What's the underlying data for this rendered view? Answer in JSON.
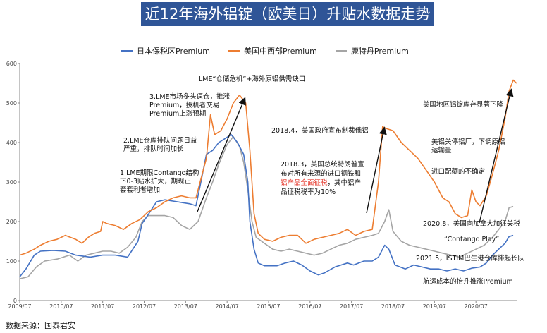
{
  "title": "近12年海外铝锭（欧美日）升贴水数据走势",
  "source": "数据来源：国泰君安",
  "colors": {
    "japan": "#4472c4",
    "us": "#ed7d31",
    "rotterdam": "#a5a5a5",
    "title_bg": "#2f5597",
    "highlight": "#e63a2e"
  },
  "chart_data": {
    "type": "line",
    "title": "",
    "xlabel": "",
    "ylabel": "",
    "ylim": [
      0,
      600
    ],
    "yticks": [
      0,
      100,
      200,
      300,
      400,
      500,
      600
    ],
    "xticks": [
      "2009/07",
      "2010/07",
      "2011/07",
      "2012/07",
      "2013/07",
      "2014/07",
      "2015/07",
      "2016/07",
      "2017/07",
      "2018/07",
      "2019/07",
      "2020/07"
    ],
    "x_start": 2009.5,
    "x_end": 2021.5,
    "grid": false,
    "legend_position": "top",
    "series": [
      {
        "name": "日本保税区Premium",
        "color_key": "japan",
        "points": [
          [
            2009.5,
            60
          ],
          [
            2009.65,
            80
          ],
          [
            2009.85,
            115
          ],
          [
            2010.0,
            125
          ],
          [
            2010.3,
            127
          ],
          [
            2010.6,
            125
          ],
          [
            2010.85,
            115
          ],
          [
            2011.2,
            110
          ],
          [
            2011.5,
            115
          ],
          [
            2011.8,
            115
          ],
          [
            2012.1,
            110
          ],
          [
            2012.35,
            150
          ],
          [
            2012.45,
            195
          ],
          [
            2012.55,
            210
          ],
          [
            2012.8,
            250
          ],
          [
            2013.0,
            255
          ],
          [
            2013.3,
            250
          ],
          [
            2013.6,
            245
          ],
          [
            2013.75,
            240
          ],
          [
            2013.85,
            290
          ],
          [
            2014.0,
            370
          ],
          [
            2014.15,
            380
          ],
          [
            2014.3,
            400
          ],
          [
            2014.45,
            410
          ],
          [
            2014.6,
            420
          ],
          [
            2014.75,
            400
          ],
          [
            2014.9,
            370
          ],
          [
            2015.0,
            300
          ],
          [
            2015.05,
            200
          ],
          [
            2015.15,
            130
          ],
          [
            2015.25,
            95
          ],
          [
            2015.4,
            88
          ],
          [
            2015.7,
            88
          ],
          [
            2015.9,
            95
          ],
          [
            2016.1,
            100
          ],
          [
            2016.3,
            90
          ],
          [
            2016.5,
            75
          ],
          [
            2016.7,
            65
          ],
          [
            2016.85,
            70
          ],
          [
            2017.1,
            85
          ],
          [
            2017.4,
            95
          ],
          [
            2017.55,
            90
          ],
          [
            2017.8,
            100
          ],
          [
            2018.0,
            100
          ],
          [
            2018.15,
            110
          ],
          [
            2018.3,
            140
          ],
          [
            2018.4,
            130
          ],
          [
            2018.55,
            90
          ],
          [
            2018.8,
            80
          ],
          [
            2019.0,
            90
          ],
          [
            2019.2,
            85
          ],
          [
            2019.4,
            80
          ],
          [
            2019.6,
            80
          ],
          [
            2019.8,
            75
          ],
          [
            2020.0,
            80
          ],
          [
            2020.2,
            75
          ],
          [
            2020.4,
            82
          ],
          [
            2020.6,
            85
          ],
          [
            2020.75,
            95
          ],
          [
            2020.9,
            115
          ],
          [
            2021.05,
            130
          ],
          [
            2021.2,
            145
          ],
          [
            2021.3,
            162
          ],
          [
            2021.4,
            165
          ]
        ]
      },
      {
        "name": "美国中西部Premium",
        "color_key": "us",
        "points": [
          [
            2009.5,
            115
          ],
          [
            2009.65,
            120
          ],
          [
            2009.85,
            130
          ],
          [
            2010.0,
            140
          ],
          [
            2010.2,
            150
          ],
          [
            2010.4,
            155
          ],
          [
            2010.6,
            165
          ],
          [
            2010.85,
            155
          ],
          [
            2011.0,
            145
          ],
          [
            2011.15,
            160
          ],
          [
            2011.3,
            170
          ],
          [
            2011.45,
            175
          ],
          [
            2011.5,
            200
          ],
          [
            2011.6,
            195
          ],
          [
            2011.8,
            190
          ],
          [
            2012.0,
            180
          ],
          [
            2012.2,
            195
          ],
          [
            2012.4,
            205
          ],
          [
            2012.6,
            225
          ],
          [
            2012.8,
            235
          ],
          [
            2013.0,
            250
          ],
          [
            2013.2,
            260
          ],
          [
            2013.4,
            265
          ],
          [
            2013.6,
            260
          ],
          [
            2013.75,
            260
          ],
          [
            2013.85,
            300
          ],
          [
            2014.0,
            360
          ],
          [
            2014.1,
            470
          ],
          [
            2014.2,
            420
          ],
          [
            2014.35,
            430
          ],
          [
            2014.5,
            460
          ],
          [
            2014.65,
            500
          ],
          [
            2014.8,
            520
          ],
          [
            2014.95,
            500
          ],
          [
            2015.05,
            380
          ],
          [
            2015.15,
            220
          ],
          [
            2015.25,
            170
          ],
          [
            2015.4,
            155
          ],
          [
            2015.6,
            150
          ],
          [
            2015.8,
            160
          ],
          [
            2016.0,
            165
          ],
          [
            2016.2,
            165
          ],
          [
            2016.4,
            145
          ],
          [
            2016.6,
            155
          ],
          [
            2016.8,
            160
          ],
          [
            2017.0,
            165
          ],
          [
            2017.2,
            170
          ],
          [
            2017.4,
            180
          ],
          [
            2017.6,
            165
          ],
          [
            2017.8,
            175
          ],
          [
            2018.0,
            180
          ],
          [
            2018.15,
            300
          ],
          [
            2018.25,
            440
          ],
          [
            2018.35,
            435
          ],
          [
            2018.5,
            430
          ],
          [
            2018.7,
            400
          ],
          [
            2018.9,
            380
          ],
          [
            2019.1,
            360
          ],
          [
            2019.3,
            330
          ],
          [
            2019.5,
            300
          ],
          [
            2019.7,
            260
          ],
          [
            2019.85,
            250
          ],
          [
            2020.0,
            220
          ],
          [
            2020.15,
            210
          ],
          [
            2020.3,
            215
          ],
          [
            2020.4,
            280
          ],
          [
            2020.5,
            250
          ],
          [
            2020.6,
            240
          ],
          [
            2020.75,
            265
          ],
          [
            2020.9,
            320
          ],
          [
            2021.05,
            380
          ],
          [
            2021.2,
            460
          ],
          [
            2021.3,
            530
          ],
          [
            2021.4,
            558
          ],
          [
            2021.48,
            550
          ]
        ]
      },
      {
        "name": "鹿特丹Premium",
        "color_key": "rotterdam",
        "points": [
          [
            2009.5,
            55
          ],
          [
            2009.7,
            60
          ],
          [
            2009.9,
            85
          ],
          [
            2010.1,
            100
          ],
          [
            2010.4,
            105
          ],
          [
            2010.7,
            115
          ],
          [
            2010.9,
            100
          ],
          [
            2011.1,
            115
          ],
          [
            2011.3,
            120
          ],
          [
            2011.5,
            125
          ],
          [
            2011.7,
            125
          ],
          [
            2011.9,
            120
          ],
          [
            2012.1,
            135
          ],
          [
            2012.3,
            160
          ],
          [
            2012.45,
            200
          ],
          [
            2012.6,
            215
          ],
          [
            2012.8,
            215
          ],
          [
            2013.0,
            215
          ],
          [
            2013.2,
            210
          ],
          [
            2013.4,
            190
          ],
          [
            2013.6,
            180
          ],
          [
            2013.8,
            200
          ],
          [
            2014.0,
            260
          ],
          [
            2014.15,
            300
          ],
          [
            2014.3,
            345
          ],
          [
            2014.5,
            395
          ],
          [
            2014.65,
            415
          ],
          [
            2014.8,
            390
          ],
          [
            2014.9,
            350
          ],
          [
            2015.0,
            280
          ],
          [
            2015.1,
            200
          ],
          [
            2015.2,
            160
          ],
          [
            2015.4,
            145
          ],
          [
            2015.6,
            130
          ],
          [
            2015.8,
            125
          ],
          [
            2016.0,
            130
          ],
          [
            2016.2,
            125
          ],
          [
            2016.4,
            120
          ],
          [
            2016.6,
            115
          ],
          [
            2016.8,
            120
          ],
          [
            2017.0,
            130
          ],
          [
            2017.2,
            140
          ],
          [
            2017.4,
            145
          ],
          [
            2017.6,
            155
          ],
          [
            2017.8,
            160
          ],
          [
            2018.0,
            165
          ],
          [
            2018.15,
            170
          ],
          [
            2018.3,
            200
          ],
          [
            2018.4,
            230
          ],
          [
            2018.5,
            175
          ],
          [
            2018.7,
            150
          ],
          [
            2018.9,
            140
          ],
          [
            2019.1,
            135
          ],
          [
            2019.3,
            130
          ],
          [
            2019.5,
            125
          ],
          [
            2019.7,
            120
          ],
          [
            2019.9,
            115
          ],
          [
            2020.1,
            110
          ],
          [
            2020.3,
            120
          ],
          [
            2020.5,
            130
          ],
          [
            2020.7,
            140
          ],
          [
            2020.9,
            160
          ],
          [
            2021.05,
            180
          ],
          [
            2021.2,
            200
          ],
          [
            2021.3,
            235
          ],
          [
            2021.4,
            238
          ]
        ]
      }
    ],
    "annotations": [
      {
        "id": "ann-1",
        "lines": [
          "1.LME期限Contango结构",
          "下0-3贴水扩大，期现正",
          "套套利者增加"
        ]
      },
      {
        "id": "ann-2",
        "lines": [
          "2.LME仓库排队问题日益",
          "严重，排队时间加长"
        ]
      },
      {
        "id": "ann-3",
        "lines": [
          "3.LME市场多头逼仓，推涨",
          "Premium，投机者交易",
          "Premium上涨预期"
        ]
      },
      {
        "id": "ann-4",
        "lines": [
          "LME“仓储危机”+海外原铝供需缺口"
        ]
      },
      {
        "id": "ann-5",
        "lines": [
          "2018.4，美国政府宣布制裁俄铝"
        ]
      },
      {
        "id": "ann-6",
        "lines": [
          "2018.3，美国总统特朗普宣",
          "布对所有来源的进口钢铁和",
          "铝产品全面征税，其中铝产",
          "品征税税率为10%"
        ],
        "red_fragment": "铝产品全面征税"
      },
      {
        "id": "ann-7",
        "lines": [
          "美国地区铝锭库存显著下降"
        ]
      },
      {
        "id": "ann-8",
        "lines": [
          "美铝关停铝厂，下调原铝",
          "运输量"
        ]
      },
      {
        "id": "ann-9",
        "lines": [
          "进口配额的不确定"
        ]
      },
      {
        "id": "ann-10",
        "lines": [
          "2020.8，美国向加拿大加征关税"
        ]
      },
      {
        "id": "ann-11",
        "lines": [
          "“Contango Play”"
        ]
      },
      {
        "id": "ann-12",
        "lines": [
          "2021.5，ISTIM巴生港仓库排起长队"
        ]
      },
      {
        "id": "ann-13",
        "lines": [
          "航运成本的抬升推涨Premium"
        ]
      }
    ]
  }
}
